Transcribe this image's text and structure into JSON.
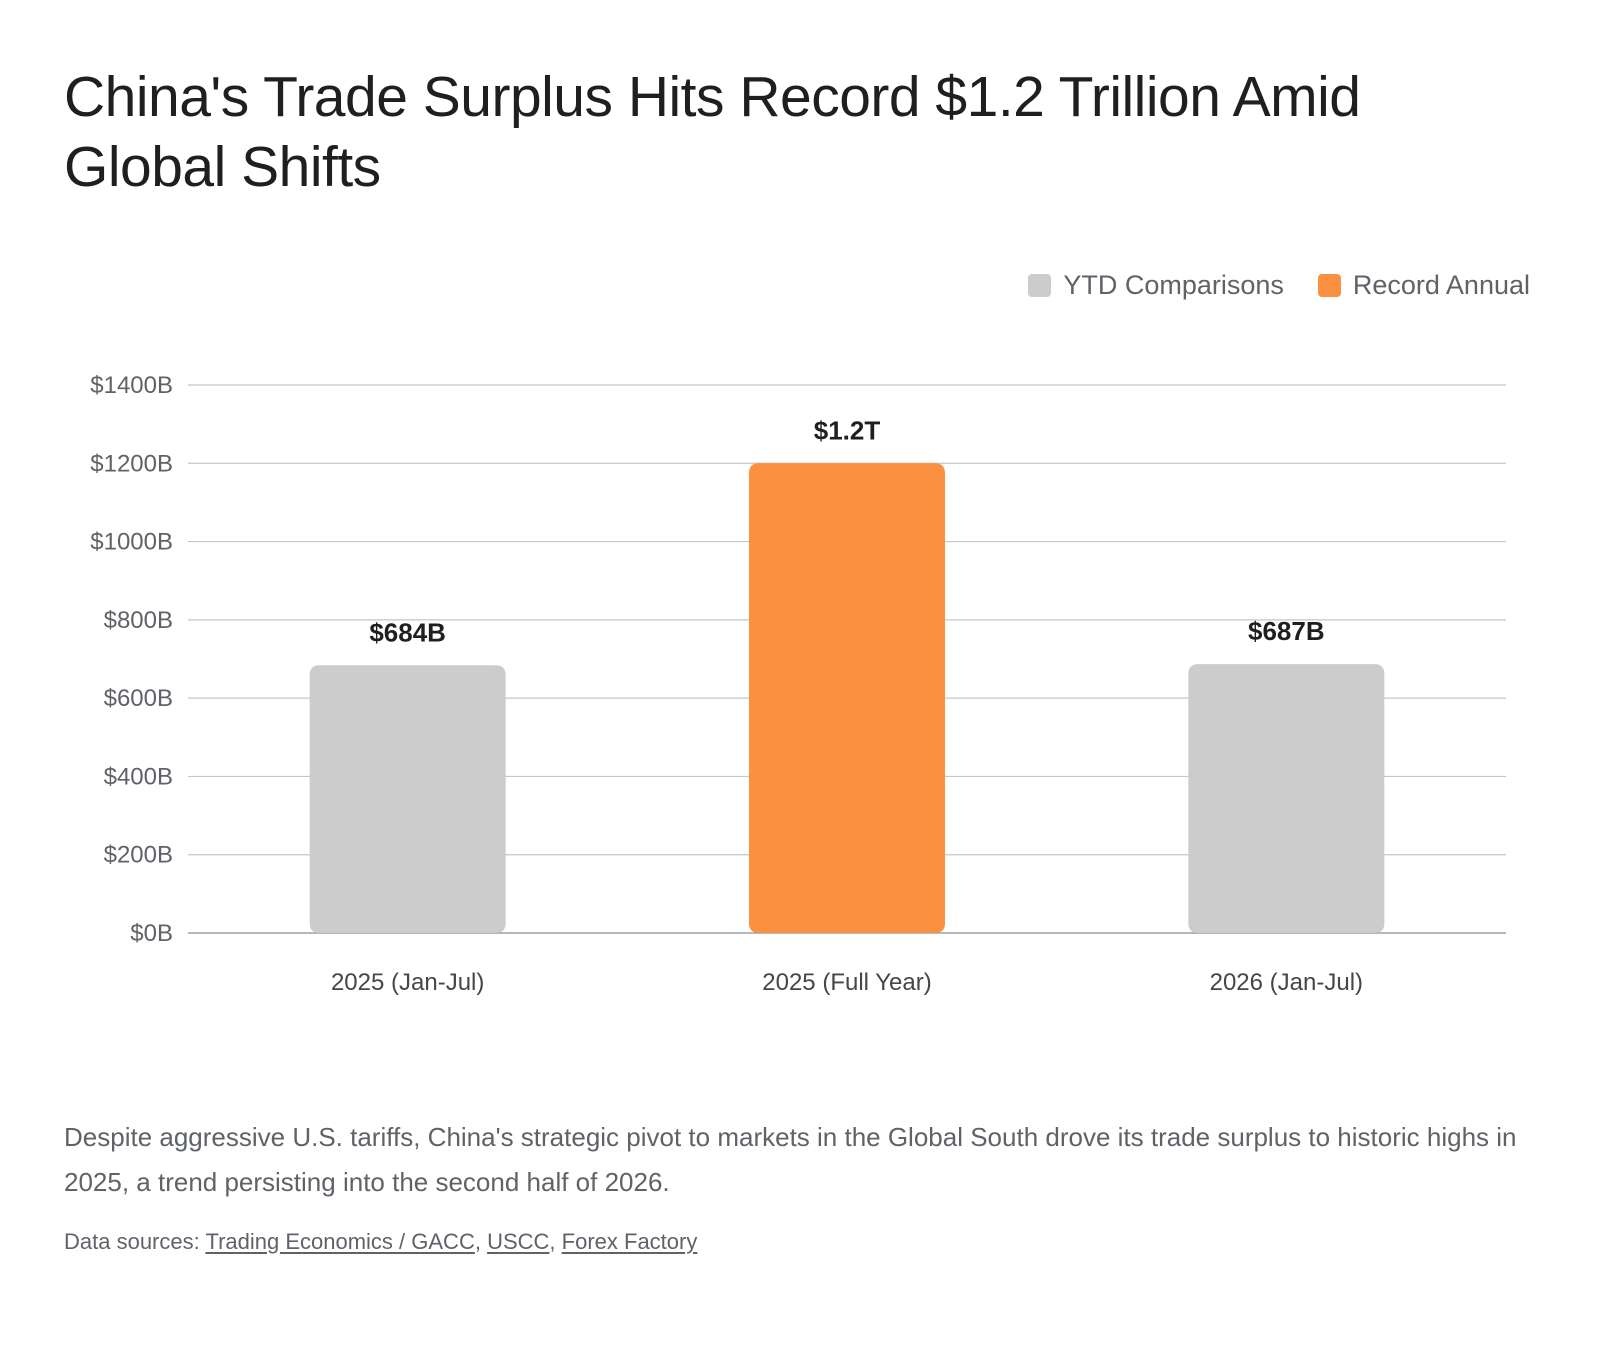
{
  "chart_data": {
    "type": "bar",
    "title": "China's Trade Surplus Hits Record $1.2 Trillion Amid Global Shifts",
    "categories": [
      "2025 (Jan-Jul)",
      "2025 (Full Year)",
      "2026 (Jan-Jul)"
    ],
    "values": [
      684,
      1200,
      687
    ],
    "data_labels": [
      "$684B",
      "$1.2T",
      "$687B"
    ],
    "bar_series": [
      "YTD Comparisons",
      "Record Annual",
      "YTD Comparisons"
    ],
    "legend": [
      {
        "name": "YTD Comparisons",
        "color": "#cccccc"
      },
      {
        "name": "Record Annual",
        "color": "#f99140"
      }
    ],
    "legend_position": "top-right",
    "ylim": [
      0,
      1400
    ],
    "yticks": [
      0,
      200,
      400,
      600,
      800,
      1000,
      1200,
      1400
    ],
    "ytick_labels": [
      "$0B",
      "$200B",
      "$400B",
      "$600B",
      "$800B",
      "$1000B",
      "$1200B",
      "$1400B"
    ],
    "xlabel": "",
    "ylabel": "",
    "grid": true
  },
  "description": "Despite aggressive U.S. tariffs, China's strategic pivot to markets in the Global South drove its trade surplus to historic highs in 2025, a trend persisting into the second half of 2026.",
  "sources": {
    "prefix": "Data sources:",
    "links": [
      "Trading Economics / GACC",
      "USCC",
      "Forex Factory"
    ]
  },
  "colors": {
    "ytd": "#cccccc",
    "record": "#f99140",
    "gridline": "#c4c7c5"
  }
}
